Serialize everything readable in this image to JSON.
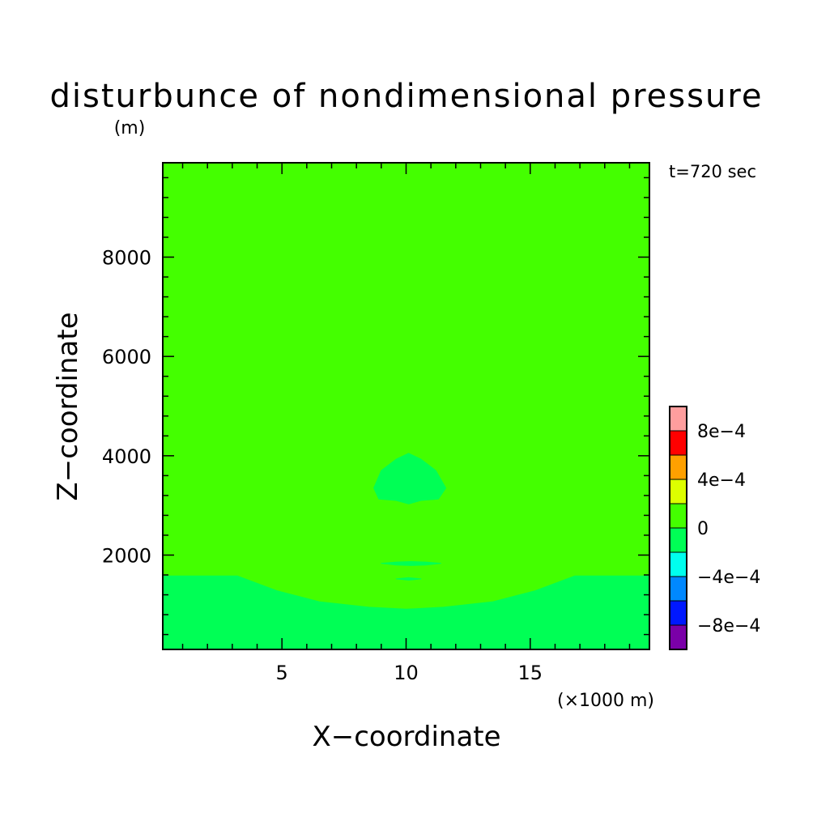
{
  "chart_data": {
    "type": "heatmap",
    "title": "disturbunce of nondimensional pressure",
    "title_units": "(m)",
    "time_label": "t=720 sec",
    "xlabel": "X−coordinate",
    "xunit": "(×1000 m)",
    "ylabel": "Z−coordinate",
    "xlim": [
      0.2,
      19.8
    ],
    "ylim": [
      100,
      9900
    ],
    "x_ticks": [
      {
        "value": 5,
        "label": "5"
      },
      {
        "value": 10,
        "label": "10"
      },
      {
        "value": 15,
        "label": "15"
      }
    ],
    "y_ticks": [
      {
        "value": 2000,
        "label": "2000"
      },
      {
        "value": 4000,
        "label": "4000"
      },
      {
        "value": 6000,
        "label": "6000"
      },
      {
        "value": 8000,
        "label": "8000"
      }
    ],
    "colorbar": {
      "levels": [
        -0.001,
        -0.0008,
        -0.0006,
        -0.0004,
        -0.0002,
        0,
        0.0002,
        0.0004,
        0.0006,
        0.0008,
        0.001
      ],
      "colors": [
        "#7a00a8",
        "#0018ff",
        "#0088ff",
        "#00ffee",
        "#00ff55",
        "#44ff00",
        "#ddff00",
        "#ffa000",
        "#ff0000",
        "#ff9e9e"
      ],
      "labels": [
        {
          "value": -0.0008,
          "label": "−8e−4"
        },
        {
          "value": -0.0004,
          "label": "−4e−4"
        },
        {
          "value": 0,
          "label": "0"
        },
        {
          "value": 0.0004,
          "label": "4e−4"
        },
        {
          "value": 0.0008,
          "label": "8e−4"
        }
      ]
    },
    "background_color": "#44ff00",
    "regions": [
      {
        "level_range": [
          -0.0002,
          0
        ],
        "color": "#00ff55",
        "points": [
          [
            0.2,
            100
          ],
          [
            0.2,
            1580
          ],
          [
            3.2,
            1580
          ],
          [
            4.8,
            1280
          ],
          [
            6.5,
            1060
          ],
          [
            8.5,
            950
          ],
          [
            10,
            910
          ],
          [
            11.5,
            950
          ],
          [
            13.5,
            1060
          ],
          [
            15.2,
            1280
          ],
          [
            16.8,
            1580
          ],
          [
            19.8,
            1580
          ],
          [
            19.8,
            100
          ]
        ]
      },
      {
        "level_range": [
          -0.0002,
          0
        ],
        "color": "#00ff55",
        "points": [
          [
            8.7,
            3350
          ],
          [
            9.0,
            3700
          ],
          [
            9.6,
            3930
          ],
          [
            10.1,
            4050
          ],
          [
            10.6,
            3930
          ],
          [
            11.2,
            3700
          ],
          [
            11.6,
            3350
          ],
          [
            11.3,
            3130
          ],
          [
            10.6,
            3100
          ],
          [
            10.1,
            3030
          ],
          [
            9.6,
            3100
          ],
          [
            8.9,
            3130
          ]
        ]
      },
      {
        "level_range": [
          -0.0002,
          0
        ],
        "color": "#00ff55",
        "points": [
          [
            9.0,
            1835
          ],
          [
            9.6,
            1860
          ],
          [
            10.2,
            1870
          ],
          [
            10.8,
            1860
          ],
          [
            11.4,
            1835
          ],
          [
            10.8,
            1800
          ],
          [
            10.2,
            1790
          ],
          [
            9.6,
            1800
          ]
        ]
      },
      {
        "level_range": [
          -0.0002,
          0
        ],
        "color": "#00ff55",
        "points": [
          [
            9.6,
            1520
          ],
          [
            10.1,
            1545
          ],
          [
            10.6,
            1520
          ],
          [
            10.1,
            1495
          ]
        ]
      }
    ]
  }
}
